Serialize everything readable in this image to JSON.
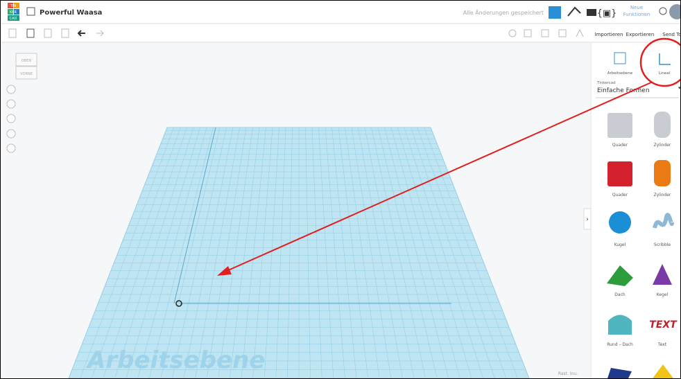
{
  "header": {
    "logo": [
      "TIN",
      "KER",
      "CAD"
    ],
    "title": "Powerful Waasa",
    "status": "Alle Änderungen gespeichert",
    "new_features": [
      "Neue",
      "Funktionen"
    ]
  },
  "toolbar": {
    "import": "Importieren",
    "export": "Exportieren",
    "send": "Send To"
  },
  "viewcube": {
    "top": "OBEN",
    "front": "VORNE"
  },
  "panel": {
    "workplane": "Arbeitsebene",
    "ruler": "Lineal",
    "library_source": "Tinkercad",
    "library": "Einfache Formen",
    "shapes": [
      "Quader",
      "Zylinder",
      "Quader",
      "Zylinder",
      "Kugel",
      "Scribble",
      "Dach",
      "Kegel",
      "Rund – Dach",
      "Text"
    ]
  },
  "canvas": {
    "workplane_label": "Arbeitsebene",
    "snap": "Rast. Inu."
  }
}
